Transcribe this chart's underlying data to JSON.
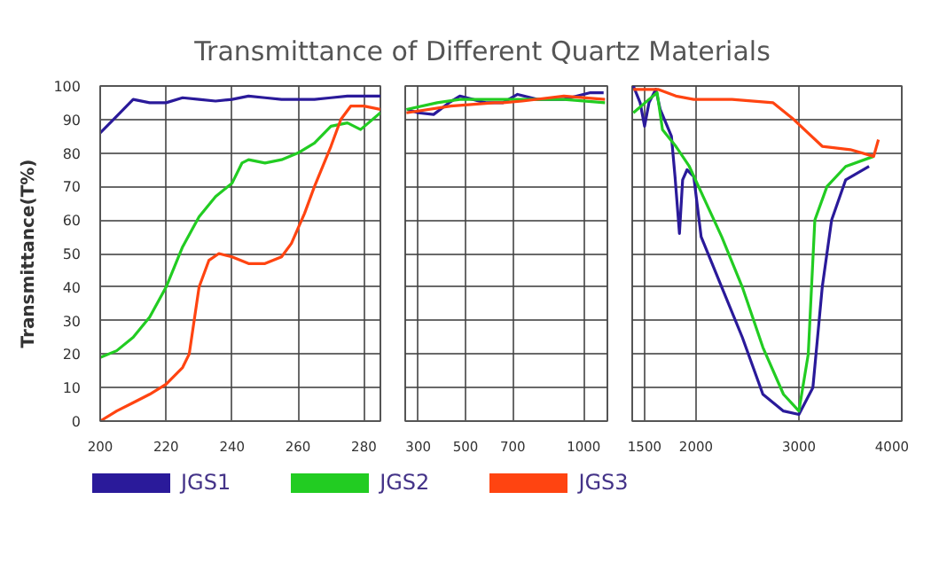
{
  "chart_data": [
    {
      "type": "line",
      "title": "Transmittance of Different Quartz Materials",
      "ylabel": "Transmittance(T%)",
      "xlim": [
        200,
        285
      ],
      "xticks": [
        200,
        220,
        240,
        260,
        280
      ],
      "ylim": [
        0,
        100
      ],
      "yticks": [
        0,
        10,
        20,
        30,
        40,
        50,
        60,
        70,
        80,
        90,
        100
      ],
      "grid": true,
      "legend": "bottom",
      "series": [
        {
          "name": "JGS1",
          "color": "#2a1a9a",
          "x": [
            200,
            205,
            210,
            215,
            220,
            225,
            230,
            235,
            240,
            245,
            250,
            255,
            260,
            265,
            270,
            275,
            280,
            285
          ],
          "values": [
            86,
            91,
            96,
            95,
            95,
            96.5,
            96,
            95.5,
            96,
            97,
            96.5,
            96,
            96,
            96,
            96.5,
            97,
            97,
            97
          ]
        },
        {
          "name": "JGS2",
          "color": "#22cc22",
          "x": [
            200,
            205,
            210,
            215,
            220,
            225,
            230,
            235,
            240,
            243,
            245,
            250,
            255,
            260,
            265,
            270,
            275,
            279,
            285
          ],
          "values": [
            19,
            21,
            25,
            31,
            40,
            52,
            61,
            67,
            71,
            77,
            78,
            77,
            78,
            80,
            83,
            88,
            89,
            87,
            92
          ]
        },
        {
          "name": "JGS3",
          "color": "#ff4411",
          "x": [
            200,
            205,
            210,
            215,
            220,
            225,
            227,
            230,
            233,
            236,
            240,
            245,
            250,
            255,
            258,
            262,
            265,
            270,
            273,
            276,
            280,
            285
          ],
          "values": [
            0,
            3,
            5.5,
            8,
            11,
            16,
            20,
            40,
            48,
            50,
            49,
            47,
            47,
            49,
            53,
            62,
            70,
            82,
            90,
            94,
            94,
            93
          ]
        }
      ]
    },
    {
      "type": "line",
      "xlim": [
        245,
        1100
      ],
      "xticks": [
        300,
        500,
        700,
        1000
      ],
      "ylim": [
        0,
        100
      ],
      "yticks": [
        0,
        10,
        20,
        30,
        40,
        50,
        60,
        70,
        80,
        90,
        100
      ],
      "grid": true,
      "tick_labels": "x",
      "series": [
        {
          "color": "#2a1a9a",
          "x": [
            254,
            300,
            365,
            430,
            476,
            531,
            585,
            658,
            720,
            804,
            916,
            1028,
            1084
          ],
          "values": [
            93,
            92,
            91.5,
            95,
            97,
            96,
            95,
            95,
            97.5,
            96,
            96,
            98,
            98
          ]
        },
        {
          "color": "#22cc22",
          "x": [
            250,
            380,
            476,
            658,
            916,
            1090
          ],
          "values": [
            93,
            95,
            96,
            96,
            96,
            95
          ]
        },
        {
          "color": "#ff4411",
          "x": [
            250,
            438,
            622,
            658,
            740,
            916,
            1090
          ],
          "values": [
            92,
            94,
            95,
            95,
            95.5,
            97,
            96
          ]
        }
      ]
    },
    {
      "type": "line",
      "xlim": [
        1380,
        4000
      ],
      "xticks": [
        1500,
        2000,
        3000,
        4000
      ],
      "ylim": [
        0,
        100
      ],
      "yticks": [
        0,
        10,
        20,
        30,
        40,
        50,
        60,
        70,
        80,
        90,
        100
      ],
      "grid": true,
      "tick_labels": "x",
      "series": [
        {
          "color": "#2a1a9a",
          "x": [
            1391,
            1457,
            1500,
            1543,
            1609,
            1652,
            1761,
            1796,
            1839,
            1870,
            1913,
            1978,
            2050,
            2250,
            2450,
            2650,
            2850,
            3000,
            3136,
            3227,
            3318,
            3455,
            3682
          ],
          "values": [
            100,
            95,
            88,
            95,
            99,
            93,
            85,
            73,
            56,
            72,
            75,
            73,
            55,
            40,
            25,
            8,
            3,
            2,
            10,
            40,
            60,
            72,
            76
          ]
        },
        {
          "color": "#22cc22",
          "x": [
            1391,
            1543,
            1622,
            1674,
            1804,
            1935,
            2100,
            2250,
            2450,
            2650,
            2850,
            3000,
            3091,
            3155,
            3273,
            3455,
            3727
          ],
          "values": [
            92,
            96,
            98,
            87,
            82,
            76,
            65,
            55,
            40,
            22,
            8,
            3,
            20,
            60,
            70,
            76,
            79
          ]
        },
        {
          "color": "#ff4411",
          "x": [
            1391,
            1630,
            1804,
            1978,
            2350,
            2750,
            2950,
            3227,
            3500,
            3727,
            3773
          ],
          "values": [
            99,
            99,
            97,
            96,
            96,
            95,
            90,
            82,
            81,
            79,
            84
          ]
        }
      ]
    }
  ]
}
